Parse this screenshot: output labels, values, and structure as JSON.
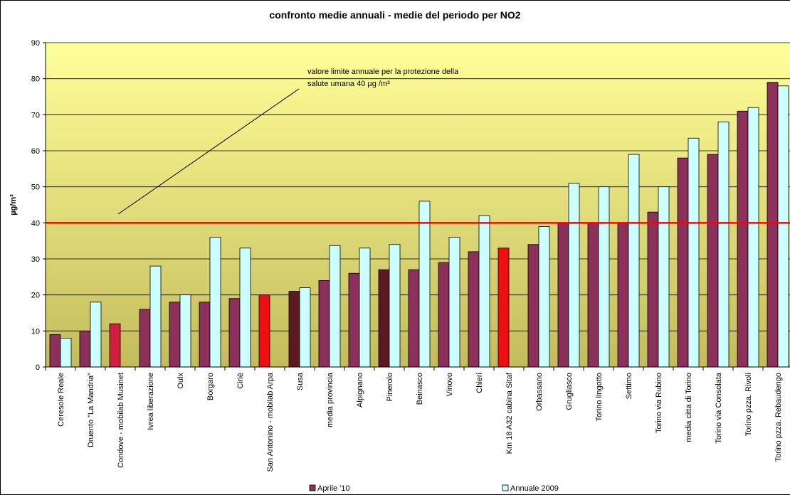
{
  "chart_data": {
    "type": "bar",
    "title": "confronto medie annuali - medie del periodo per NO2",
    "y_label": "µg/m³",
    "categories": [
      "Ceresole Reale",
      "Druento \"La Mandria\"",
      "Condove - mobilab Musinet",
      "Ivrea liberazione",
      "Oulx",
      "Borgaro",
      "Ciriè",
      "San Antonino - mobilab Arpa",
      "Susa",
      "media provincia",
      "Alpignano",
      "Pinerolo",
      "Beinasco",
      "Vinovo",
      "Chieri",
      "Km 18 A32 cabina Sitaf",
      "Orbassano",
      "Grugliasco",
      "Torino lingotto",
      "Settimo",
      "Torino via Rubino",
      "media citta di Torino",
      "Torino via Consolata",
      "Torino pzza. Rivoli",
      "Torino pzza. Rebaudengo"
    ],
    "series": [
      {
        "name": "Aprile '10",
        "color": "#8b3058",
        "point_colors": [
          "#8b3058",
          "#8b3058",
          "#d02040",
          "#8b3058",
          "#8b3058",
          "#8b3058",
          "#8b3058",
          "#ee1010",
          "#5a1a20",
          "#8b3058",
          "#8b3058",
          "#5a1a20",
          "#8b3058",
          "#8b3058",
          "#8b3058",
          "#ee1010",
          "#8b3058",
          "#8b3058",
          "#8b3058",
          "#8b3058",
          "#8b3058",
          "#8b3058",
          "#8b3058",
          "#8b3058",
          "#8b3058"
        ],
        "values": [
          9,
          10,
          12,
          16,
          18,
          18,
          19,
          20,
          21,
          24,
          26,
          27,
          27,
          29,
          32,
          33,
          34,
          40,
          40,
          40,
          43,
          58,
          59,
          71,
          79
        ]
      },
      {
        "name": "Annuale 2009",
        "color": "#ccffff",
        "values": [
          8,
          18,
          null,
          28,
          20,
          36,
          33,
          null,
          22,
          33.7,
          33,
          34,
          46,
          36,
          42,
          null,
          39,
          51,
          50,
          59,
          50,
          63.5,
          68,
          72,
          78
        ]
      }
    ],
    "reference_line": {
      "value": 40,
      "color": "#ff0000"
    },
    "annotation": [
      "valore limite annuale per la protezione della",
      "salute umana 40 µg /m³"
    ],
    "ylim": [
      0,
      90
    ],
    "yticks": [
      0,
      10,
      20,
      30,
      40,
      50,
      60,
      70,
      80,
      90
    ],
    "grid": true
  }
}
